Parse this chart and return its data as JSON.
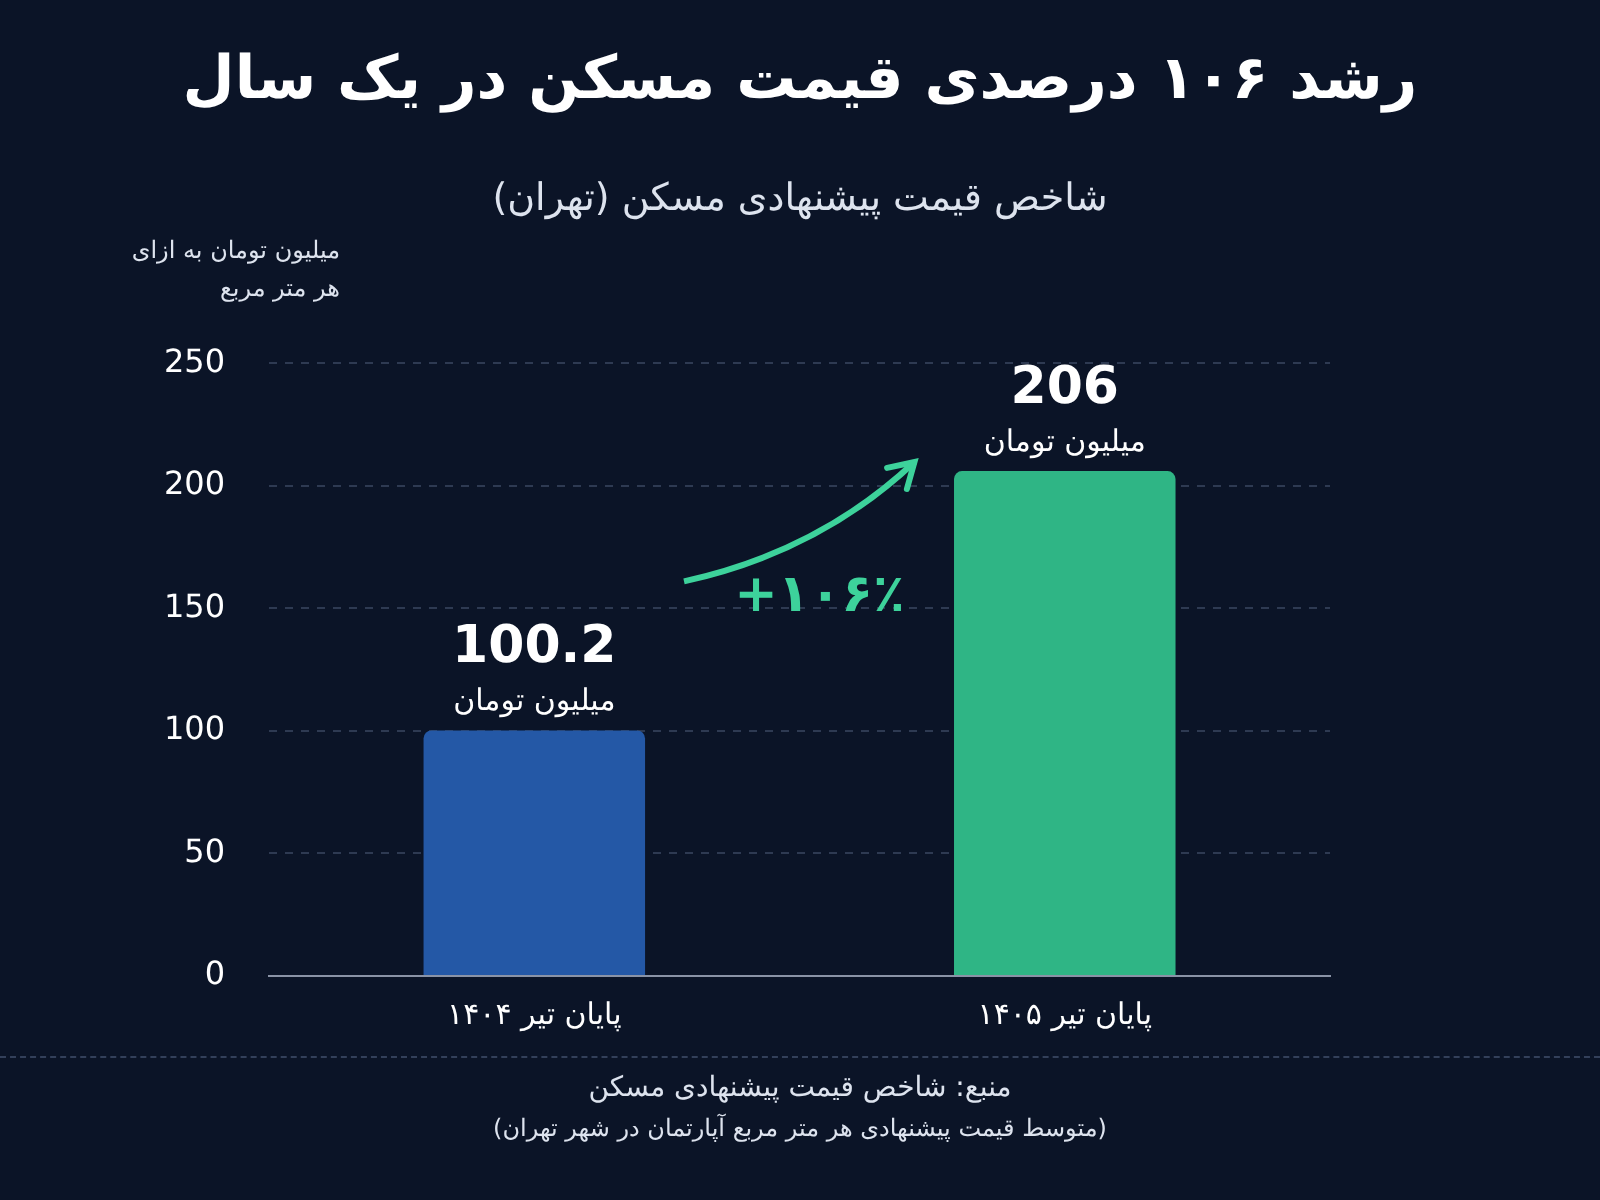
{
  "chart_data": {
    "type": "bar",
    "title": "رشد ۱۰۶ درصدی قیمت مسکن در یک سال",
    "subtitle": "شاخص قیمت پیشنهادی مسکن (تهران)",
    "ylabel": "میلیون تومان به ازای هر متر مربع",
    "categories": [
      "پایان تیر ۱۴۰۴",
      "پایان تیر ۱۴۰۵"
    ],
    "values": [
      100.2,
      206
    ],
    "colors": [
      "#2458a6",
      "#2fb585"
    ],
    "value_labels": [
      "100.2\nمیلیون تومان",
      "206\nمیلیون تومان"
    ],
    "ylim": [
      0,
      250
    ],
    "yticks": [
      0,
      50,
      100,
      150,
      200,
      250
    ],
    "grid": "y",
    "legend": false,
    "annotations": [
      "+۱۰۶٪",
      "منبع: شاخص قیمت پیشنهادی مسکن",
      "(متوسط قیمت پیشنهادی هر متر مربع آپارتمان در شهر تهران)"
    ]
  }
}
